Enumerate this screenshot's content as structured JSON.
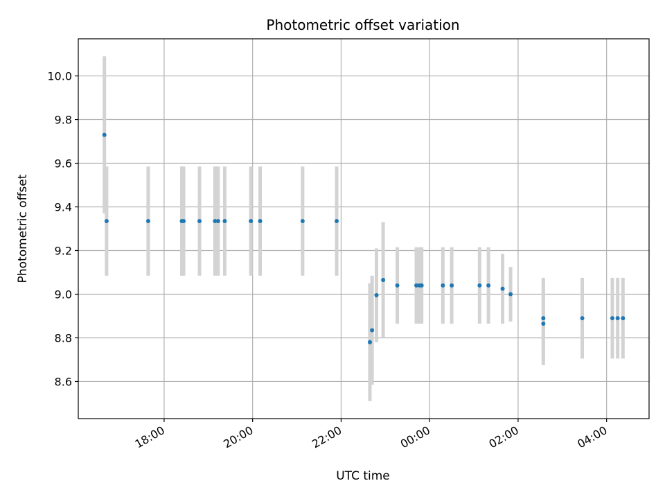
{
  "chart_data": {
    "type": "scatter",
    "title": "Photometric offset variation",
    "xlabel": "UTC time",
    "ylabel": "Photometric offset",
    "x_tick_labels": [
      "18:00",
      "20:00",
      "22:00",
      "00:00",
      "02:00",
      "04:00"
    ],
    "x_tick_hours": [
      18,
      20,
      22,
      24,
      26,
      28
    ],
    "y_ticks": [
      8.6,
      8.8,
      9.0,
      9.2,
      9.4,
      9.6,
      9.8,
      10.0
    ],
    "y_tick_labels": [
      "8.6",
      "8.8",
      "9.0",
      "9.2",
      "9.4",
      "9.6",
      "9.8",
      "10.0"
    ],
    "xlim_hours": [
      16.06,
      28.96
    ],
    "ylim": [
      8.43,
      10.17
    ],
    "grid": true,
    "colors": {
      "points": "#1f77b4",
      "errorbars": "#d3d3d3",
      "grid": "#b0b0b0"
    },
    "points": [
      {
        "t": 16.65,
        "y": 9.73,
        "err": 0.36
      },
      {
        "t": 16.7,
        "y": 9.335,
        "err": 0.25
      },
      {
        "t": 17.64,
        "y": 9.335,
        "err": 0.25
      },
      {
        "t": 18.4,
        "y": 9.335,
        "err": 0.25
      },
      {
        "t": 18.44,
        "y": 9.335,
        "err": 0.25
      },
      {
        "t": 18.8,
        "y": 9.335,
        "err": 0.25
      },
      {
        "t": 19.15,
        "y": 9.335,
        "err": 0.25
      },
      {
        "t": 19.22,
        "y": 9.335,
        "err": 0.25
      },
      {
        "t": 19.37,
        "y": 9.335,
        "err": 0.25
      },
      {
        "t": 19.96,
        "y": 9.335,
        "err": 0.25
      },
      {
        "t": 20.17,
        "y": 9.335,
        "err": 0.25
      },
      {
        "t": 21.13,
        "y": 9.335,
        "err": 0.25
      },
      {
        "t": 21.9,
        "y": 9.335,
        "err": 0.25
      },
      {
        "t": 22.65,
        "y": 8.78,
        "err": 0.27
      },
      {
        "t": 22.7,
        "y": 8.835,
        "err": 0.25
      },
      {
        "t": 22.8,
        "y": 8.995,
        "err": 0.215
      },
      {
        "t": 22.95,
        "y": 9.065,
        "err": 0.265
      },
      {
        "t": 23.27,
        "y": 9.04,
        "err": 0.175
      },
      {
        "t": 23.7,
        "y": 9.04,
        "err": 0.175
      },
      {
        "t": 23.77,
        "y": 9.04,
        "err": 0.175
      },
      {
        "t": 23.82,
        "y": 9.04,
        "err": 0.175
      },
      {
        "t": 24.3,
        "y": 9.04,
        "err": 0.175
      },
      {
        "t": 24.5,
        "y": 9.04,
        "err": 0.175
      },
      {
        "t": 25.13,
        "y": 9.04,
        "err": 0.175
      },
      {
        "t": 25.33,
        "y": 9.04,
        "err": 0.175
      },
      {
        "t": 25.65,
        "y": 9.025,
        "err": 0.16
      },
      {
        "t": 25.83,
        "y": 9.0,
        "err": 0.125
      },
      {
        "t": 26.57,
        "y": 8.89,
        "err": 0.185
      },
      {
        "t": 26.57,
        "y": 8.865,
        "err": 0.19
      },
      {
        "t": 27.45,
        "y": 8.89,
        "err": 0.185
      },
      {
        "t": 28.13,
        "y": 8.89,
        "err": 0.185
      },
      {
        "t": 28.25,
        "y": 8.89,
        "err": 0.185
      },
      {
        "t": 28.37,
        "y": 8.89,
        "err": 0.185
      }
    ]
  }
}
